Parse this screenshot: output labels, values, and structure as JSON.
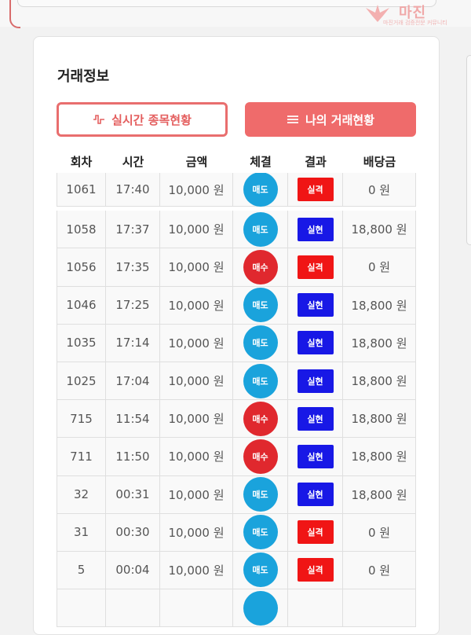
{
  "brand": {
    "name": "마진",
    "tagline": "마진거래 검증전문 커뮤니티"
  },
  "section_title": "거래정보",
  "buttons": {
    "realtime": "실시간 종목현황",
    "my_trades": "나의 거래현황"
  },
  "icons": {
    "realtime": "pulse-icon",
    "my_trades": "list-icon"
  },
  "columns": [
    "회차",
    "시간",
    "금액",
    "체결",
    "결과",
    "배당금"
  ],
  "colors": {
    "accent": "#ef6b6b",
    "sell": "#1aa3dc",
    "buy": "#e0282e",
    "fail": "#f01515",
    "win": "#1818e6"
  },
  "rows": [
    {
      "round": "1061",
      "time": "17:40",
      "amount": "10,000 원",
      "side": "매도",
      "side_type": "sell",
      "result": "실격",
      "result_type": "fail",
      "payout": "0 원"
    },
    {
      "round": "1058",
      "time": "17:37",
      "amount": "10,000 원",
      "side": "매도",
      "side_type": "sell",
      "result": "실현",
      "result_type": "win",
      "payout": "18,800 원"
    },
    {
      "round": "1056",
      "time": "17:35",
      "amount": "10,000 원",
      "side": "매수",
      "side_type": "buy",
      "result": "실격",
      "result_type": "fail",
      "payout": "0 원"
    },
    {
      "round": "1046",
      "time": "17:25",
      "amount": "10,000 원",
      "side": "매도",
      "side_type": "sell",
      "result": "실현",
      "result_type": "win",
      "payout": "18,800 원"
    },
    {
      "round": "1035",
      "time": "17:14",
      "amount": "10,000 원",
      "side": "매도",
      "side_type": "sell",
      "result": "실현",
      "result_type": "win",
      "payout": "18,800 원"
    },
    {
      "round": "1025",
      "time": "17:04",
      "amount": "10,000 원",
      "side": "매도",
      "side_type": "sell",
      "result": "실현",
      "result_type": "win",
      "payout": "18,800 원"
    },
    {
      "round": "715",
      "time": "11:54",
      "amount": "10,000 원",
      "side": "매수",
      "side_type": "buy",
      "result": "실현",
      "result_type": "win",
      "payout": "18,800 원"
    },
    {
      "round": "711",
      "time": "11:50",
      "amount": "10,000 원",
      "side": "매수",
      "side_type": "buy",
      "result": "실현",
      "result_type": "win",
      "payout": "18,800 원"
    },
    {
      "round": "32",
      "time": "00:31",
      "amount": "10,000 원",
      "side": "매도",
      "side_type": "sell",
      "result": "실현",
      "result_type": "win",
      "payout": "18,800 원"
    },
    {
      "round": "31",
      "time": "00:30",
      "amount": "10,000 원",
      "side": "매도",
      "side_type": "sell",
      "result": "실격",
      "result_type": "fail",
      "payout": "0 원"
    },
    {
      "round": "5",
      "time": "00:04",
      "amount": "10,000 원",
      "side": "매도",
      "side_type": "sell",
      "result": "실격",
      "result_type": "fail",
      "payout": "0 원"
    },
    {
      "round": "",
      "time": "",
      "amount": "",
      "side": "",
      "side_type": "sell",
      "result": "",
      "result_type": "",
      "payout": ""
    }
  ]
}
